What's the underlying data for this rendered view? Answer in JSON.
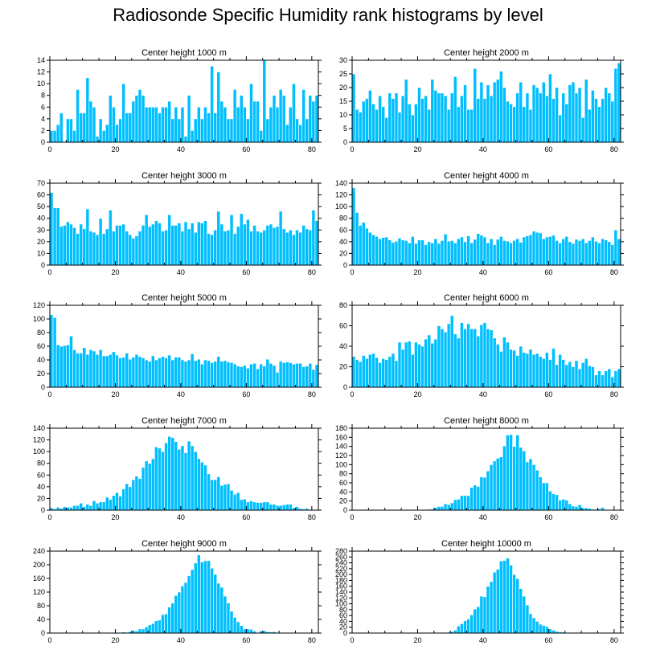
{
  "title": "Radiosonde Specific Humidity rank histograms by level",
  "colors": {
    "bar": "#00bfff",
    "bar_edge": "#ffffff",
    "axis": "#000000"
  },
  "chart_data": [
    {
      "type": "bar",
      "title": "Center height 1000 m",
      "xlim": [
        0,
        82
      ],
      "ylim": [
        0,
        14
      ],
      "xticks": [
        0,
        20,
        40,
        60,
        80
      ],
      "yticks": [
        0,
        2,
        4,
        6,
        8,
        10,
        12,
        14
      ],
      "values": [
        2,
        2,
        3,
        5,
        0,
        4,
        4,
        2,
        9,
        5,
        5,
        11,
        7,
        6,
        1,
        4,
        2,
        3,
        8,
        6,
        3,
        4,
        10,
        5,
        5,
        7,
        8,
        9,
        8,
        6,
        6,
        6,
        6,
        5,
        6,
        6,
        7,
        4,
        6,
        4,
        6,
        1,
        8,
        2,
        4,
        6,
        4,
        6,
        5,
        13,
        5,
        12,
        7,
        6,
        4,
        4,
        9,
        6,
        8,
        6,
        4,
        10,
        7,
        7,
        2,
        14,
        4,
        6,
        8,
        6,
        9,
        8,
        3,
        6,
        10,
        4,
        3,
        9,
        4,
        8,
        7,
        8
      ],
      "ylabel": ""
    },
    {
      "type": "bar",
      "title": "Center height 2000 m",
      "xlim": [
        0,
        82
      ],
      "ylim": [
        0,
        30
      ],
      "xticks": [
        0,
        20,
        40,
        60,
        80
      ],
      "yticks": [
        0,
        5,
        10,
        15,
        20,
        25,
        30
      ],
      "values": [
        25,
        12,
        11,
        15,
        16,
        19,
        14,
        12,
        17,
        13,
        9,
        18,
        16,
        18,
        11,
        17,
        23,
        14,
        10,
        14,
        20,
        16,
        17,
        12,
        23,
        19,
        18,
        18,
        17,
        12,
        18,
        24,
        13,
        17,
        21,
        12,
        12,
        27,
        16,
        22,
        16,
        21,
        17,
        22,
        23,
        26,
        20,
        15,
        14,
        13,
        18,
        22,
        13,
        18,
        12,
        21,
        20,
        18,
        22,
        17,
        25,
        16,
        20,
        10,
        18,
        14,
        21,
        22,
        18,
        20,
        9,
        23,
        12,
        19,
        16,
        13,
        16,
        20,
        18,
        15,
        27,
        29
      ],
      "ylabel": ""
    },
    {
      "type": "bar",
      "title": "Center height 3000 m",
      "xlim": [
        0,
        82
      ],
      "ylim": [
        0,
        70
      ],
      "xticks": [
        0,
        20,
        40,
        60,
        80
      ],
      "yticks": [
        0,
        10,
        20,
        30,
        40,
        50,
        60,
        70
      ],
      "values": [
        62,
        49,
        49,
        33,
        34,
        37,
        35,
        32,
        27,
        35,
        31,
        48,
        29,
        28,
        26,
        40,
        27,
        31,
        47,
        29,
        34,
        34,
        35,
        29,
        26,
        23,
        25,
        29,
        34,
        43,
        33,
        35,
        38,
        36,
        29,
        30,
        43,
        34,
        34,
        36,
        29,
        37,
        31,
        36,
        28,
        37,
        36,
        38,
        27,
        26,
        30,
        46,
        35,
        29,
        30,
        43,
        27,
        33,
        44,
        35,
        39,
        29,
        34,
        29,
        28,
        30,
        34,
        35,
        32,
        33,
        46,
        31,
        28,
        30,
        26,
        30,
        28,
        34,
        31,
        30,
        47,
        38
      ],
      "ylabel": ""
    },
    {
      "type": "bar",
      "title": "Center height 4000 m",
      "xlim": [
        0,
        82
      ],
      "ylim": [
        0,
        140
      ],
      "xticks": [
        0,
        20,
        40,
        60,
        80
      ],
      "yticks": [
        0,
        20,
        40,
        60,
        80,
        100,
        120,
        140
      ],
      "values": [
        132,
        90,
        68,
        73,
        63,
        56,
        52,
        49,
        45,
        47,
        48,
        43,
        39,
        41,
        46,
        43,
        42,
        38,
        49,
        37,
        43,
        43,
        35,
        40,
        38,
        45,
        37,
        42,
        53,
        41,
        42,
        38,
        45,
        48,
        40,
        50,
        38,
        44,
        54,
        51,
        48,
        38,
        45,
        35,
        44,
        49,
        42,
        41,
        38,
        42,
        45,
        39,
        48,
        50,
        52,
        58,
        56,
        55,
        45,
        48,
        49,
        51,
        42,
        38,
        45,
        49,
        40,
        37,
        44,
        42,
        45,
        38,
        42,
        48,
        41,
        38,
        45,
        43,
        40,
        35,
        60,
        45
      ],
      "ylabel": ""
    },
    {
      "type": "bar",
      "title": "Center height 5000 m",
      "xlim": [
        0,
        82
      ],
      "ylim": [
        0,
        120
      ],
      "xticks": [
        0,
        20,
        40,
        60,
        80
      ],
      "yticks": [
        0,
        20,
        40,
        60,
        80,
        100,
        120
      ],
      "values": [
        106,
        102,
        62,
        60,
        61,
        62,
        75,
        55,
        50,
        50,
        58,
        48,
        55,
        53,
        48,
        55,
        46,
        46,
        48,
        52,
        47,
        43,
        44,
        50,
        41,
        44,
        48,
        45,
        43,
        40,
        38,
        46,
        40,
        43,
        45,
        43,
        47,
        40,
        44,
        44,
        40,
        38,
        40,
        49,
        39,
        41,
        34,
        40,
        39,
        36,
        38,
        45,
        38,
        39,
        37,
        36,
        34,
        31,
        30,
        32,
        28,
        34,
        35,
        27,
        34,
        31,
        41,
        35,
        32,
        22,
        38,
        36,
        37,
        36,
        34,
        35,
        35,
        30,
        31,
        35,
        26,
        33
      ],
      "ylabel": ""
    },
    {
      "type": "bar",
      "title": "Center height 6000 m",
      "xlim": [
        0,
        82
      ],
      "ylim": [
        0,
        80
      ],
      "xticks": [
        0,
        20,
        40,
        60,
        80
      ],
      "yticks": [
        0,
        20,
        40,
        60,
        80
      ],
      "values": [
        30,
        27,
        25,
        31,
        28,
        32,
        33,
        29,
        24,
        28,
        27,
        30,
        33,
        26,
        44,
        37,
        44,
        45,
        32,
        44,
        42,
        40,
        47,
        51,
        43,
        47,
        60,
        57,
        54,
        62,
        70,
        52,
        48,
        63,
        57,
        62,
        57,
        57,
        50,
        61,
        63,
        57,
        56,
        48,
        42,
        35,
        49,
        44,
        37,
        36,
        31,
        40,
        34,
        33,
        37,
        32,
        33,
        30,
        28,
        34,
        27,
        38,
        22,
        32,
        27,
        22,
        25,
        20,
        26,
        18,
        24,
        28,
        21,
        20,
        12,
        16,
        12,
        16,
        18,
        10,
        16,
        18
      ],
      "ylabel": ""
    },
    {
      "type": "bar",
      "title": "Center height 7000 m",
      "xlim": [
        0,
        82
      ],
      "ylim": [
        0,
        140
      ],
      "xticks": [
        0,
        20,
        40,
        60,
        80
      ],
      "yticks": [
        0,
        20,
        40,
        60,
        80,
        100,
        120,
        140
      ],
      "values": [
        4,
        2,
        5,
        3,
        6,
        5,
        5,
        8,
        8,
        12,
        6,
        10,
        8,
        16,
        12,
        14,
        14,
        22,
        18,
        25,
        30,
        24,
        36,
        45,
        40,
        52,
        58,
        54,
        73,
        84,
        80,
        88,
        108,
        106,
        100,
        115,
        126,
        124,
        117,
        104,
        110,
        98,
        118,
        110,
        100,
        88,
        82,
        77,
        62,
        52,
        52,
        57,
        42,
        44,
        45,
        34,
        27,
        30,
        18,
        19,
        14,
        16,
        14,
        13,
        13,
        14,
        14,
        10,
        10,
        8,
        8,
        9,
        10,
        10,
        4,
        6,
        3,
        2,
        3,
        1,
        0,
        0
      ],
      "ylabel": ""
    },
    {
      "type": "bar",
      "title": "Center height 8000 m",
      "xlim": [
        0,
        82
      ],
      "ylim": [
        0,
        180
      ],
      "xticks": [
        0,
        20,
        40,
        60,
        80
      ],
      "yticks": [
        0,
        20,
        40,
        60,
        80,
        100,
        120,
        140,
        160,
        180
      ],
      "values": [
        0,
        0,
        0,
        0,
        0,
        0,
        0,
        0,
        0,
        0,
        0,
        0,
        0,
        0,
        0,
        0,
        0,
        0,
        0,
        0,
        0,
        1,
        1,
        2,
        2,
        6,
        8,
        8,
        14,
        12,
        16,
        23,
        24,
        32,
        32,
        32,
        50,
        55,
        52,
        73,
        72,
        86,
        100,
        108,
        114,
        117,
        141,
        165,
        166,
        140,
        165,
        138,
        130,
        106,
        113,
        100,
        88,
        73,
        60,
        60,
        42,
        36,
        34,
        22,
        24,
        22,
        14,
        9,
        8,
        12,
        5,
        5,
        4,
        2,
        2,
        3,
        6,
        1,
        0,
        0,
        1,
        1
      ],
      "ylabel": ""
    },
    {
      "type": "bar",
      "title": "Center height 9000 m",
      "xlim": [
        0,
        82
      ],
      "ylim": [
        0,
        240
      ],
      "xticks": [
        0,
        20,
        40,
        60,
        80
      ],
      "yticks": [
        0,
        40,
        80,
        120,
        160,
        200,
        240
      ],
      "values": [
        0,
        0,
        0,
        0,
        0,
        0,
        0,
        0,
        0,
        0,
        0,
        0,
        0,
        0,
        0,
        0,
        0,
        0,
        0,
        2,
        2,
        2,
        3,
        2,
        4,
        8,
        6,
        12,
        12,
        18,
        24,
        28,
        36,
        38,
        54,
        56,
        76,
        88,
        110,
        120,
        138,
        148,
        168,
        186,
        205,
        229,
        208,
        212,
        212,
        190,
        172,
        146,
        134,
        108,
        88,
        64,
        46,
        33,
        22,
        12,
        12,
        11,
        6,
        2,
        6,
        7,
        4,
        3,
        4,
        2,
        2,
        1,
        2,
        2,
        0,
        2,
        0,
        0,
        0,
        0,
        0,
        0
      ],
      "ylabel": ""
    },
    {
      "type": "bar",
      "title": "Center height 10000 m",
      "xlim": [
        0,
        82
      ],
      "ylim": [
        0,
        280
      ],
      "xticks": [
        0,
        20,
        40,
        60,
        80
      ],
      "yticks": [
        0,
        20,
        40,
        60,
        80,
        100,
        120,
        140,
        160,
        180,
        200,
        220,
        240,
        260,
        280
      ],
      "values": [
        0,
        0,
        0,
        0,
        0,
        0,
        0,
        0,
        0,
        0,
        0,
        0,
        0,
        0,
        0,
        0,
        0,
        0,
        0,
        0,
        0,
        0,
        0,
        0,
        0,
        0,
        0,
        0,
        2,
        3,
        5,
        10,
        24,
        32,
        42,
        48,
        62,
        82,
        90,
        126,
        124,
        160,
        176,
        208,
        218,
        246,
        248,
        256,
        232,
        200,
        186,
        152,
        126,
        96,
        66,
        52,
        40,
        30,
        26,
        22,
        14,
        10,
        6,
        4,
        3,
        2,
        2,
        2,
        1,
        1,
        1,
        0,
        0,
        0,
        0,
        0,
        0,
        0,
        0,
        0,
        0,
        0
      ],
      "ylabel": ""
    }
  ]
}
